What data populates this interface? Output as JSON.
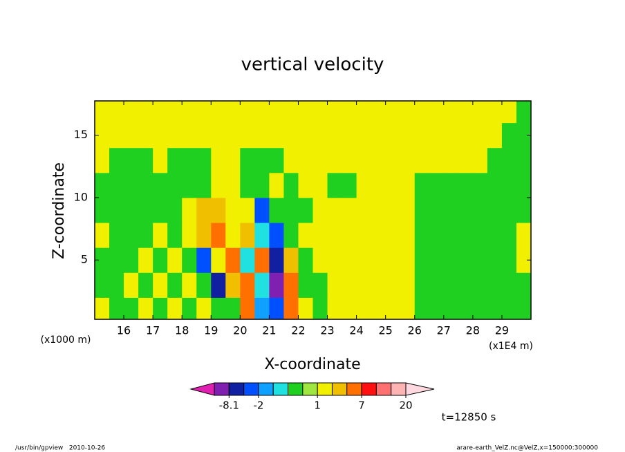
{
  "chart_data": {
    "type": "contour",
    "title": "vertical velocity",
    "x_label": "X-coordinate",
    "y_label": "Z-coordinate",
    "x_unit": "(x1E4 m)",
    "y_unit": "(x1000 m)",
    "time_label": "t=12850 s",
    "footer_left": "/usr/bin/gpview   2010-10-26",
    "footer_right": "arare-earth_VelZ.nc@VelZ,x=150000:300000",
    "xlim": [
      15,
      30
    ],
    "ylim": [
      0.25,
      17.75
    ],
    "xticks": [
      16,
      17,
      18,
      19,
      20,
      21,
      22,
      23,
      24,
      25,
      26,
      27,
      28,
      29
    ],
    "yticks": [
      5,
      10,
      15
    ],
    "x": [
      15.25,
      15.75,
      16.25,
      16.75,
      17.25,
      17.75,
      18.25,
      18.75,
      19.25,
      19.75,
      20.25,
      20.75,
      21.25,
      21.75,
      22.25,
      22.75,
      23.25,
      23.75,
      24.25,
      24.75,
      25.25,
      25.75,
      26.25,
      26.75,
      27.25,
      27.75,
      28.25,
      28.75,
      29.25,
      29.75
    ],
    "z": [
      1,
      3,
      5,
      7,
      9,
      11,
      13,
      15,
      17
    ],
    "values": [
      [
        1.5,
        0,
        0,
        1.5,
        0,
        1.5,
        0,
        1.5,
        0,
        0,
        5,
        -1.5,
        -4,
        6,
        1.5,
        0,
        1.5,
        1.5,
        1.5,
        1.5,
        1.5,
        1.5,
        0,
        0,
        0,
        0,
        0,
        0,
        0,
        0
      ],
      [
        0,
        0,
        1.5,
        0,
        1.5,
        0,
        1.5,
        0,
        -6,
        3,
        6,
        -1,
        -8.5,
        6,
        0,
        0,
        1.5,
        1.5,
        1.5,
        1.5,
        1.5,
        1.5,
        0,
        0,
        0,
        0,
        0,
        0,
        0,
        0
      ],
      [
        0,
        0,
        0,
        1.5,
        0,
        1.5,
        0,
        -3,
        1.5,
        6,
        -1,
        6,
        -6,
        3,
        0,
        1.5,
        1.5,
        1.5,
        1.5,
        1.5,
        1.5,
        1.5,
        0,
        0,
        0,
        0,
        0,
        0,
        0,
        1.5
      ],
      [
        1.5,
        0,
        0,
        0,
        1.5,
        0,
        1.5,
        3,
        6,
        1.5,
        3,
        -0.8,
        -3,
        0,
        1.5,
        1.5,
        1.5,
        1.5,
        1.5,
        1.5,
        1.5,
        1.5,
        0,
        0,
        0,
        0,
        0,
        0,
        0,
        1.5
      ],
      [
        0,
        0,
        0,
        0,
        0,
        0,
        1.5,
        3,
        3,
        1.5,
        1.5,
        -3,
        0,
        0,
        0,
        1.5,
        1.5,
        1.5,
        1.5,
        1.5,
        1.5,
        1.5,
        0,
        0,
        0,
        0,
        0,
        0,
        0,
        0
      ],
      [
        0,
        0,
        0,
        0,
        0,
        0,
        0,
        0,
        1.5,
        1.5,
        0,
        0,
        1.5,
        0,
        1.5,
        1.5,
        0,
        0,
        1.5,
        1.5,
        1.5,
        1.5,
        0,
        0,
        0,
        0,
        0,
        0,
        0,
        0
      ],
      [
        1.5,
        0,
        0,
        0,
        1.5,
        0,
        0,
        0,
        1.5,
        1.5,
        0,
        0,
        0,
        1.5,
        1.5,
        1.5,
        1.5,
        1.5,
        1.5,
        1.5,
        1.5,
        1.5,
        1.5,
        1.5,
        1.5,
        1.5,
        1.5,
        0,
        0,
        0
      ],
      [
        1.5,
        1.5,
        1.5,
        1.5,
        1.5,
        1.5,
        1.5,
        1.5,
        1.5,
        1.5,
        1.5,
        1.5,
        1.5,
        1.5,
        1.5,
        1.5,
        1.5,
        1.5,
        1.5,
        1.5,
        1.5,
        1.5,
        1.5,
        1.5,
        1.5,
        1.5,
        1.5,
        1.5,
        0,
        0
      ],
      [
        1.5,
        1.5,
        1.5,
        1.5,
        1.5,
        1.5,
        1.5,
        1.5,
        1.5,
        1.5,
        1.5,
        1.5,
        1.5,
        1.5,
        1.5,
        1.5,
        1.5,
        1.5,
        1.5,
        1.5,
        1.5,
        1.5,
        1.5,
        1.5,
        1.5,
        1.5,
        1.5,
        1.5,
        1.5,
        0
      ]
    ],
    "levels": [
      -20,
      -8.1,
      -4,
      -2,
      -1,
      -0.5,
      0.5,
      1,
      2,
      4,
      7,
      10,
      14,
      20
    ],
    "colors": [
      "#e020b0",
      "#8020b0",
      "#1020a0",
      "#0050ff",
      "#10a0ff",
      "#20e0e0",
      "#20d020",
      "#a0e640",
      "#f0f000",
      "#f0c000",
      "#ff7000",
      "#ff1010",
      "#ff7070",
      "#ffb4b4",
      "#ffd8e0"
    ],
    "colorbar_ticks": [
      -8.1,
      -2,
      1,
      7,
      20
    ]
  }
}
